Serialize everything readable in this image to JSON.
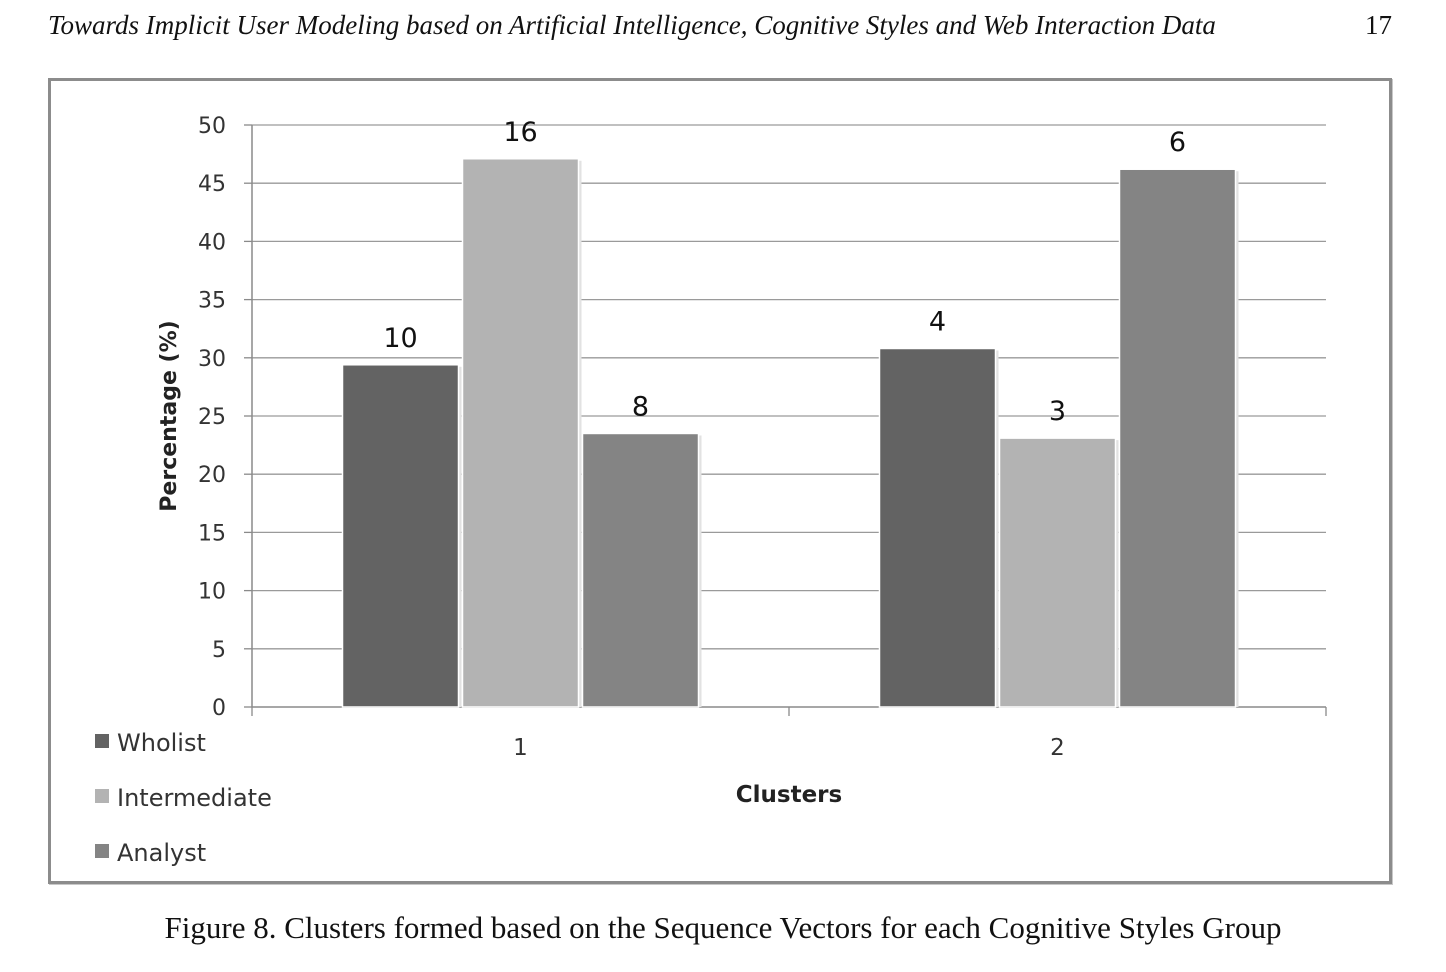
{
  "header": {
    "running_title": "Towards Implicit User Modeling based on Artificial Intelligence, Cognitive Styles and Web Interaction Data",
    "page_number": "17"
  },
  "caption": "Figure 8. Clusters formed based on the Sequence Vectors for each Cognitive Styles Group",
  "chart_data": {
    "type": "bar",
    "categories": [
      "1",
      "2"
    ],
    "xlabel": "Clusters",
    "ylabel": "Percentage (%)",
    "ylim": [
      0,
      50
    ],
    "yticks": [
      0,
      5,
      10,
      15,
      20,
      25,
      30,
      35,
      40,
      45,
      50
    ],
    "grid": true,
    "legend_position": "bottom-left",
    "series": [
      {
        "name": "Wholist",
        "values": [
          29.4,
          30.8
        ],
        "data_labels": [
          "10",
          "4"
        ],
        "color": "#636363"
      },
      {
        "name": "Intermediate",
        "values": [
          47.1,
          23.1
        ],
        "data_labels": [
          "16",
          "3"
        ],
        "color": "#b3b3b3"
      },
      {
        "name": "Analyst",
        "values": [
          23.5,
          46.2
        ],
        "data_labels": [
          "8",
          "6"
        ],
        "color": "#848484"
      }
    ]
  }
}
